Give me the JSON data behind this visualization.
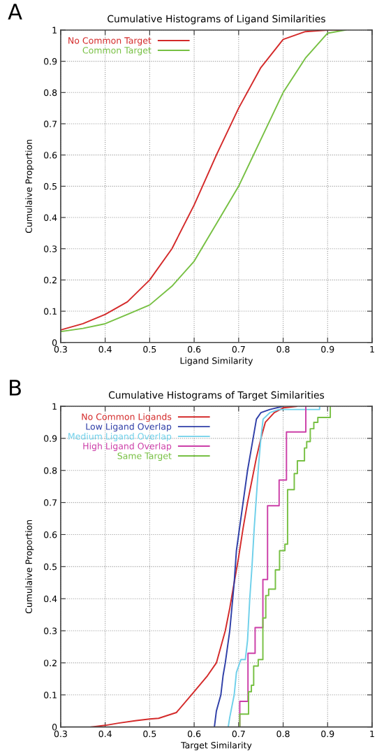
{
  "chart_data": [
    {
      "type": "line",
      "title": "Cumulative Histograms of Ligand Similarities",
      "xlabel": "Ligand Similarity",
      "ylabel": "Cumulaive Proportion",
      "annotations": [
        "A"
      ],
      "xlim": [
        0.3,
        1
      ],
      "xticks": [
        0.3,
        0.4,
        0.5,
        0.6,
        0.7,
        0.8,
        0.9,
        1
      ],
      "ylim": [
        0,
        1
      ],
      "yticks": [
        0,
        0.1,
        0.2,
        0.3,
        0.4,
        0.5,
        0.6,
        0.7,
        0.8,
        0.9,
        1
      ],
      "grid": true,
      "legend": "top left",
      "series": [
        {
          "name": "No Common Target",
          "color": "#d42a2a",
          "x": [
            0.3,
            0.35,
            0.4,
            0.45,
            0.5,
            0.55,
            0.6,
            0.65,
            0.7,
            0.75,
            0.8,
            0.85,
            0.9,
            0.93
          ],
          "values": [
            0.04,
            0.06,
            0.09,
            0.13,
            0.2,
            0.3,
            0.44,
            0.6,
            0.75,
            0.88,
            0.97,
            0.995,
            1.0,
            1.0
          ]
        },
        {
          "name": "Common Target",
          "color": "#77c043",
          "x": [
            0.3,
            0.35,
            0.4,
            0.45,
            0.5,
            0.55,
            0.6,
            0.65,
            0.7,
            0.75,
            0.8,
            0.85,
            0.9,
            0.94
          ],
          "values": [
            0.035,
            0.045,
            0.06,
            0.09,
            0.12,
            0.18,
            0.26,
            0.38,
            0.5,
            0.65,
            0.8,
            0.91,
            0.99,
            1.0
          ]
        }
      ]
    },
    {
      "type": "line",
      "title": "Cumulative Histograms of Target Similarities",
      "xlabel": "Target Similarity",
      "ylabel": "Cumulaive Proportion",
      "annotations": [
        "B"
      ],
      "xlim": [
        0.3,
        1
      ],
      "xticks": [
        0.3,
        0.4,
        0.5,
        0.6,
        0.7,
        0.8,
        0.9,
        1
      ],
      "ylim": [
        0,
        1
      ],
      "yticks": [
        0,
        0.1,
        0.2,
        0.3,
        0.4,
        0.5,
        0.6,
        0.7,
        0.8,
        0.9,
        1
      ],
      "grid": true,
      "legend": "top left",
      "series": [
        {
          "name": "No Common Ligands",
          "color": "#d42a2a",
          "x": [
            0.369,
            0.4,
            0.43,
            0.47,
            0.5,
            0.52,
            0.56,
            0.6,
            0.63,
            0.65,
            0.67,
            0.68,
            0.69,
            0.7,
            0.71,
            0.72,
            0.73,
            0.74,
            0.75,
            0.76,
            0.78,
            0.8,
            0.83
          ],
          "values": [
            0,
            0.005,
            0.012,
            0.02,
            0.025,
            0.027,
            0.045,
            0.11,
            0.16,
            0.2,
            0.3,
            0.37,
            0.45,
            0.53,
            0.62,
            0.7,
            0.77,
            0.84,
            0.9,
            0.95,
            0.98,
            0.995,
            1.0
          ]
        },
        {
          "name": "Low Ligand Overlap",
          "color": "#2f3fa8",
          "x": [
            0.6455,
            0.65,
            0.66,
            0.665,
            0.67,
            0.68,
            0.69,
            0.695,
            0.7,
            0.71,
            0.72,
            0.73,
            0.74,
            0.75,
            0.77,
            0.8
          ],
          "values": [
            0,
            0.05,
            0.1,
            0.16,
            0.2,
            0.3,
            0.45,
            0.55,
            0.6,
            0.7,
            0.8,
            0.88,
            0.96,
            0.98,
            0.99,
            1.0
          ]
        },
        {
          "name": "Medium Ligand Overlap",
          "color": "#6fd0ea",
          "x": [
            0.6766,
            0.68,
            0.69,
            0.695,
            0.7,
            0.705,
            0.715,
            0.72,
            0.725,
            0.73,
            0.735,
            0.74,
            0.745,
            0.75,
            0.755,
            0.77,
            0.79,
            0.882,
            0.882
          ],
          "values": [
            0,
            0.03,
            0.1,
            0.17,
            0.19,
            0.21,
            0.21,
            0.27,
            0.4,
            0.5,
            0.62,
            0.72,
            0.82,
            0.9,
            0.96,
            0.98,
            0.99,
            0.99,
            1.0
          ]
        },
        {
          "name": "High Ligand Overlap",
          "type": "step",
          "color": "#cc3fa8",
          "x": [
            0.7026,
            0.7026,
            0.721,
            0.737,
            0.7545,
            0.765,
            0.791,
            0.8075,
            0.851
          ],
          "values": [
            0,
            0.08,
            0.23,
            0.31,
            0.46,
            0.69,
            0.77,
            0.92,
            1.0
          ]
        },
        {
          "name": "Same Target",
          "type": "step",
          "color": "#77c043",
          "x": [
            0.7026,
            0.7026,
            0.7223,
            0.7286,
            0.7338,
            0.744,
            0.7545,
            0.761,
            0.7675,
            0.7826,
            0.792,
            0.804,
            0.81,
            0.825,
            0.832,
            0.848,
            0.853,
            0.861,
            0.869,
            0.878,
            0.906
          ],
          "values": [
            0,
            0.04,
            0.11,
            0.13,
            0.19,
            0.21,
            0.34,
            0.41,
            0.43,
            0.49,
            0.55,
            0.57,
            0.74,
            0.79,
            0.83,
            0.87,
            0.89,
            0.93,
            0.95,
            0.965,
            1.0
          ]
        }
      ]
    }
  ]
}
